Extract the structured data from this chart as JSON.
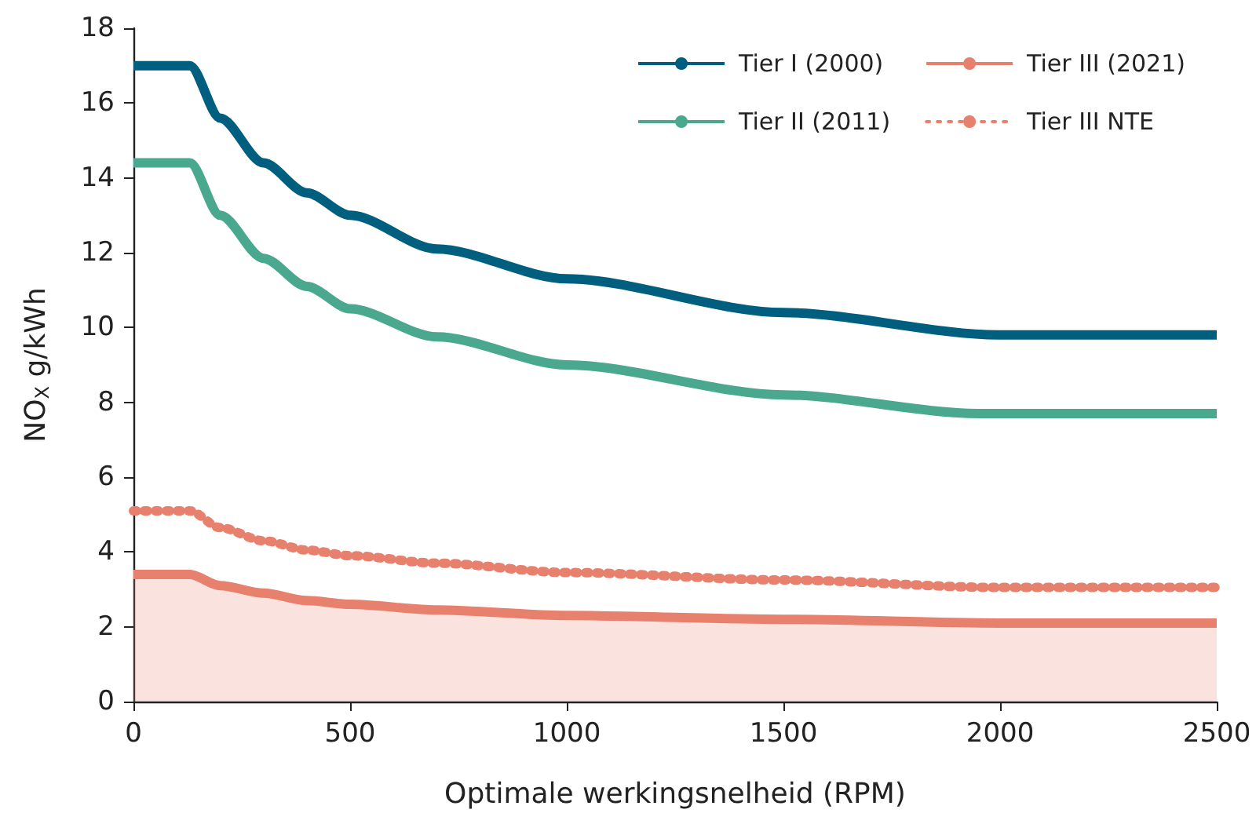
{
  "chart_data": {
    "type": "line",
    "xlabel": "Optimale werkingsnelheid (RPM)",
    "ylabel": "NO$_{X}$ g/kWh",
    "x": [
      0,
      130,
      200,
      300,
      400,
      500,
      700,
      1000,
      1500,
      2000,
      2500
    ],
    "series": [
      {
        "name": "Tier I (2000)",
        "color": "#005f7f",
        "x": [
          0,
          130,
          200,
          300,
          400,
          500,
          700,
          1000,
          1500,
          2000,
          2500
        ],
        "values": [
          17,
          17,
          15.6,
          14.4,
          13.6,
          13,
          12.1,
          11.3,
          10.4,
          9.8,
          9.8
        ]
      },
      {
        "name": "Tier II (2011)",
        "color": "#4aa88e",
        "x": [
          0,
          130,
          200,
          300,
          400,
          500,
          700,
          1000,
          1500,
          1950,
          2500
        ],
        "values": [
          14.4,
          14.4,
          13,
          11.85,
          11.1,
          10.5,
          9.75,
          9,
          8.2,
          7.7,
          7.7
        ]
      },
      {
        "name": "Tier III (2021)",
        "type": "area",
        "color": "#e8806e",
        "values": [
          3.4,
          3.4,
          3.1,
          2.9,
          2.7,
          2.6,
          2.45,
          2.3,
          2.2,
          2.1,
          2.1
        ]
      },
      {
        "name": "Tier III NTE",
        "color": "#e8806e",
        "line_style": "dotted",
        "values": [
          5.1,
          5.1,
          4.65,
          4.3,
          4.05,
          3.9,
          3.7,
          3.45,
          3.25,
          3.05,
          3.05
        ]
      }
    ],
    "xlim": [
      0,
      2500
    ],
    "xticks": [
      0,
      500,
      1000,
      1500,
      2000,
      2500
    ],
    "ylim": [
      0,
      18
    ],
    "yticks": [
      0,
      2,
      4,
      6,
      8,
      10,
      12,
      14,
      16,
      18
    ],
    "grid": false,
    "legend": "top right",
    "marker": "none",
    "line_style": "solid"
  }
}
